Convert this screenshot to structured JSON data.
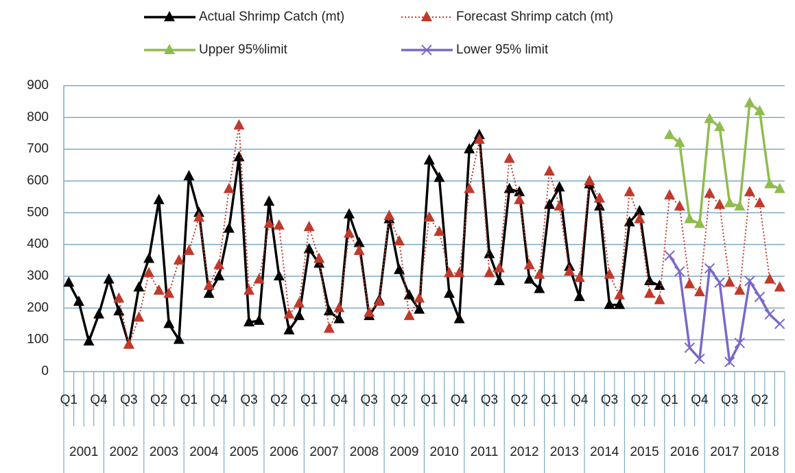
{
  "chart_data": {
    "type": "line",
    "categories": [
      "Q1",
      null,
      null,
      "Q4",
      null,
      null,
      "Q3",
      null,
      null,
      "Q2",
      null,
      null,
      "Q1",
      null,
      null,
      "Q4",
      null,
      null,
      "Q3",
      null,
      null,
      "Q2",
      null,
      null,
      "Q1",
      null,
      null,
      "Q4",
      null,
      null,
      "Q3",
      null,
      null,
      "Q2",
      null,
      null,
      "Q1",
      null,
      null,
      "Q4",
      null,
      null,
      "Q3",
      null,
      null,
      "Q2",
      null,
      null,
      "Q1",
      null,
      null,
      "Q4",
      null,
      null,
      "Q3",
      null,
      null,
      "Q2",
      null,
      null,
      "Q1",
      null,
      null,
      "Q4",
      null,
      null,
      "Q3",
      null,
      null,
      "Q2",
      null,
      null
    ],
    "years": [
      "2001",
      "2002",
      "2003",
      "2004",
      "2005",
      "2006",
      "2007",
      "2008",
      "2009",
      "2010",
      "2011",
      "2012",
      "2013",
      "2014",
      "2015",
      "2016",
      "2017",
      "2018"
    ],
    "series": [
      {
        "name": "Actual Shrimp Catch (mt)",
        "color": "#000000",
        "marker": "triangle",
        "line_style": "solid",
        "values": [
          280,
          220,
          95,
          180,
          290,
          190,
          85,
          265,
          355,
          540,
          150,
          100,
          615,
          500,
          245,
          300,
          450,
          675,
          155,
          160,
          535,
          300,
          130,
          175,
          385,
          340,
          190,
          165,
          495,
          405,
          175,
          225,
          480,
          320,
          240,
          195,
          665,
          610,
          245,
          165,
          700,
          745,
          370,
          285,
          575,
          565,
          290,
          260,
          525,
          580,
          330,
          235,
          590,
          520,
          210,
          210,
          470,
          505,
          285,
          270,
          null,
          null,
          null,
          null,
          null,
          null,
          null,
          null,
          null,
          null,
          null,
          null
        ]
      },
      {
        "name": "Forecast Shrimp catch (mt)",
        "color": "#c0392b",
        "marker": "triangle",
        "line_style": "dotted",
        "values": [
          null,
          null,
          null,
          null,
          null,
          230,
          85,
          170,
          310,
          255,
          245,
          350,
          380,
          485,
          270,
          335,
          575,
          775,
          255,
          290,
          465,
          460,
          180,
          215,
          455,
          355,
          135,
          200,
          435,
          380,
          185,
          220,
          490,
          410,
          175,
          230,
          485,
          440,
          310,
          310,
          575,
          730,
          310,
          325,
          670,
          540,
          335,
          305,
          630,
          520,
          315,
          295,
          600,
          545,
          305,
          240,
          565,
          480,
          245,
          225,
          555,
          520,
          275,
          250,
          560,
          525,
          280,
          255,
          565,
          530,
          290,
          265
        ]
      },
      {
        "name": "Upper  95%limit",
        "color": "#8fbc4f",
        "marker": "triangle",
        "line_style": "solid",
        "values": [
          null,
          null,
          null,
          null,
          null,
          null,
          null,
          null,
          null,
          null,
          null,
          null,
          null,
          null,
          null,
          null,
          null,
          null,
          null,
          null,
          null,
          null,
          null,
          null,
          null,
          null,
          null,
          null,
          null,
          null,
          null,
          null,
          null,
          null,
          null,
          null,
          null,
          null,
          null,
          null,
          null,
          null,
          null,
          null,
          null,
          null,
          null,
          null,
          null,
          null,
          null,
          null,
          null,
          null,
          null,
          null,
          null,
          null,
          null,
          null,
          745,
          720,
          480,
          465,
          795,
          770,
          530,
          520,
          845,
          820,
          590,
          575
        ]
      },
      {
        "name": "Lower 95% limit",
        "color": "#7b68c8",
        "marker": "x",
        "line_style": "solid",
        "values": [
          null,
          null,
          null,
          null,
          null,
          null,
          null,
          null,
          null,
          null,
          null,
          null,
          null,
          null,
          null,
          null,
          null,
          null,
          null,
          null,
          null,
          null,
          null,
          null,
          null,
          null,
          null,
          null,
          null,
          null,
          null,
          null,
          null,
          null,
          null,
          null,
          null,
          null,
          null,
          null,
          null,
          null,
          null,
          null,
          null,
          null,
          null,
          null,
          null,
          null,
          null,
          null,
          null,
          null,
          null,
          null,
          null,
          null,
          null,
          null,
          365,
          315,
          75,
          40,
          325,
          280,
          30,
          90,
          285,
          235,
          180,
          150
        ]
      }
    ],
    "ylim": [
      0,
      900
    ],
    "yticks": [
      0,
      100,
      200,
      300,
      400,
      500,
      600,
      700,
      800,
      900
    ],
    "grid": true
  }
}
